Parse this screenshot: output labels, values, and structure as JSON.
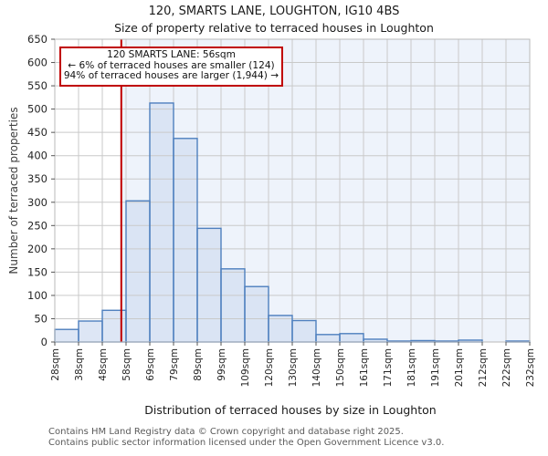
{
  "title": "120, SMARTS LANE, LOUGHTON, IG10 4BS",
  "subtitle": "Size of property relative to terraced houses in Loughton",
  "annotation": {
    "line1": "120 SMARTS LANE: 56sqm",
    "line2": "← 6% of terraced houses are smaller (124)",
    "line3": "94% of terraced houses are larger (1,944) →"
  },
  "footer": {
    "line1": "Contains HM Land Registry data © Crown copyright and database right 2025.",
    "line2": "Contains public sector information licensed under the Open Government Licence v3.0."
  },
  "chart_data": {
    "type": "bar",
    "title": "120, SMARTS LANE, LOUGHTON, IG10 4BS",
    "subtitle": "Size of property relative to terraced houses in Loughton",
    "xlabel": "Distribution of terraced houses by size in Loughton",
    "ylabel": "Number of terraced properties",
    "x_tick_labels": [
      "28sqm",
      "38sqm",
      "48sqm",
      "58sqm",
      "69sqm",
      "79sqm",
      "89sqm",
      "99sqm",
      "109sqm",
      "120sqm",
      "130sqm",
      "140sqm",
      "150sqm",
      "161sqm",
      "171sqm",
      "181sqm",
      "191sqm",
      "201sqm",
      "212sqm",
      "222sqm",
      "232sqm"
    ],
    "bin_edges_sqm": [
      28,
      38,
      48,
      58,
      69,
      79,
      89,
      99,
      109,
      120,
      130,
      140,
      150,
      161,
      171,
      181,
      191,
      201,
      212,
      222,
      232
    ],
    "values": [
      27,
      45,
      68,
      303,
      513,
      437,
      244,
      157,
      119,
      57,
      46,
      16,
      18,
      6,
      2,
      3,
      2,
      4,
      0,
      2
    ],
    "ylim": [
      0,
      650
    ],
    "y_tick_step": 50,
    "grid": true,
    "marker_value_sqm": 56,
    "marker_color": "#c00000",
    "bar_fill": "#d5e0f2",
    "bar_stroke": "#4e7fbe",
    "grid_color": "#c9c9c9",
    "plot_border_color": "#b9b9b9",
    "tick_color": "#555555",
    "tick_label_color": "#262626",
    "shaded_region_fill": "#eef3fb"
  }
}
